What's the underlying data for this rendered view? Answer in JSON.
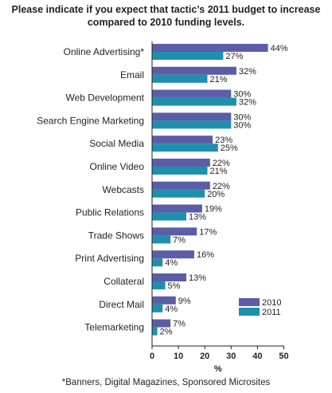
{
  "chart_data": {
    "type": "bar",
    "orientation": "horizontal",
    "title_lines": [
      "Please indicate if you expect that tactic’s 2011 budget to increase",
      "compared to 2010 funding levels."
    ],
    "xlabel": "%",
    "xlim": [
      0,
      50
    ],
    "xticks": [
      "0",
      "10",
      "20",
      "30",
      "40",
      "50"
    ],
    "grid": false,
    "legend_position": "bottom-right",
    "categories": [
      "Online Advertising*",
      "Email",
      "Web Development",
      "Search Engine Marketing",
      "Social Media",
      "Online Video",
      "Webcasts",
      "Public Relations",
      "Trade Shows",
      "Print Advertising",
      "Collateral",
      "Direct Mail",
      "Telemarketing"
    ],
    "series": [
      {
        "name": "2010",
        "color": "#5b5ea6",
        "values": [
          44,
          32,
          30,
          30,
          23,
          22,
          22,
          19,
          17,
          16,
          13,
          9,
          7
        ],
        "labels": [
          "44%",
          "32%",
          "30%",
          "30%",
          "23%",
          "22%",
          "22%",
          "19%",
          "17%",
          "16%",
          "13%",
          "9%",
          "7%"
        ]
      },
      {
        "name": "2011",
        "color": "#1f8fae",
        "values": [
          27,
          21,
          32,
          30,
          25,
          21,
          20,
          13,
          7,
          4,
          5,
          4,
          2
        ],
        "labels": [
          "27%",
          "21%",
          "32%",
          "30%",
          "25%",
          "21%",
          "20%",
          "13%",
          "7%",
          "4%",
          "5%",
          "4%",
          "2%"
        ]
      }
    ],
    "footnote": "*Banners, Digital Magazines, Sponsored Microsites"
  }
}
